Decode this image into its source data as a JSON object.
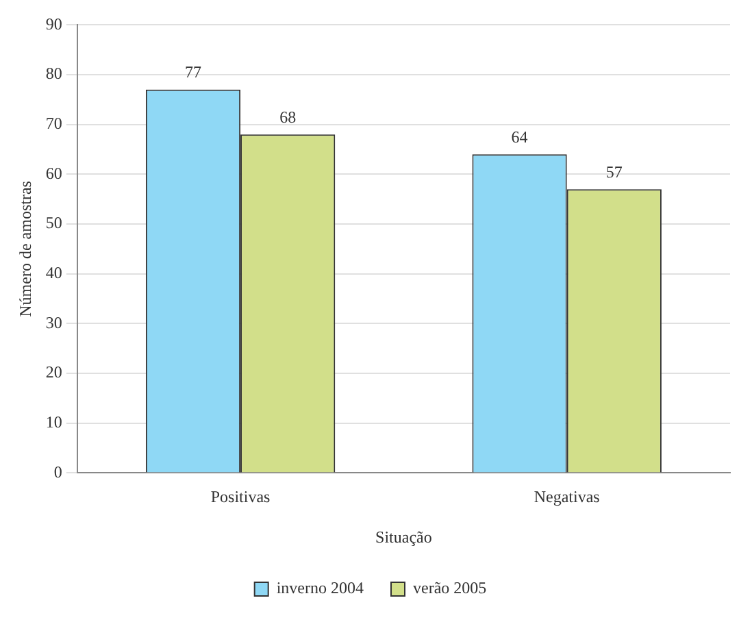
{
  "chart_data": {
    "type": "bar",
    "xlabel": "Situação",
    "ylabel": "Número de amostras",
    "categories": [
      "Positivas",
      "Negativas"
    ],
    "series": [
      {
        "name": "inverno 2004",
        "color": "#8fd8f5",
        "values": [
          77,
          64
        ]
      },
      {
        "name": "verão 2005",
        "color": "#d2df8a",
        "values": [
          68,
          57
        ]
      }
    ],
    "ylim": [
      0,
      90
    ],
    "yticks": [
      0,
      10,
      20,
      30,
      40,
      50,
      60,
      70,
      80,
      90
    ],
    "grid": "y",
    "legend": "bottom",
    "data_labels": true
  }
}
